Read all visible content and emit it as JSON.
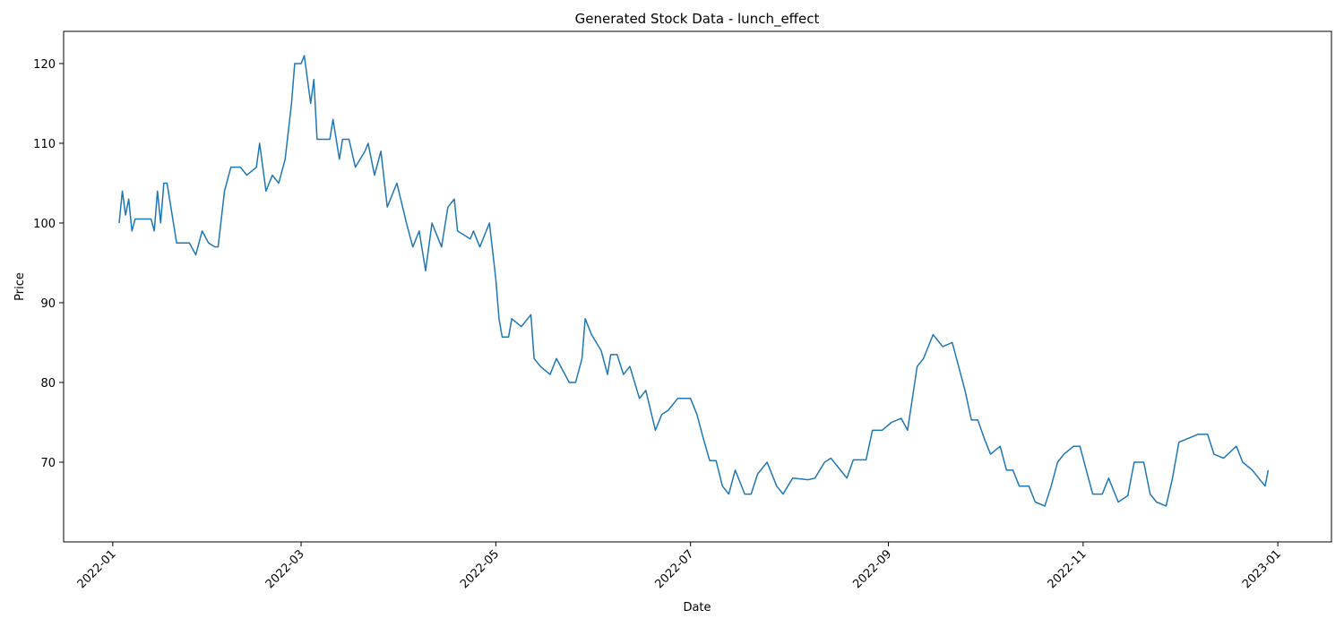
{
  "chart_data": {
    "type": "line",
    "title": "Generated Stock Data - lunch_effect",
    "x_label": "Date",
    "y_label": "Price",
    "x": [
      2,
      3,
      4,
      5,
      6,
      7,
      9,
      12,
      13,
      14,
      15,
      16,
      17,
      20,
      22,
      24,
      26,
      28,
      30,
      32,
      33,
      35,
      37,
      40,
      42,
      45,
      46,
      48,
      50,
      52,
      54,
      56,
      57,
      59,
      60,
      62,
      63,
      64,
      68,
      69,
      71,
      72,
      74,
      76,
      79,
      80,
      82,
      84,
      86,
      88,
      89,
      92,
      94,
      96,
      98,
      100,
      103,
      105,
      107,
      108,
      112,
      113,
      115,
      117,
      118,
      120,
      121,
      122,
      124,
      125,
      128,
      131,
      132,
      134,
      137,
      139,
      143,
      145,
      147,
      148,
      150,
      153,
      155,
      156,
      158,
      160,
      162,
      165,
      167,
      170,
      172,
      174,
      177,
      181,
      183,
      185,
      187,
      189,
      191,
      193,
      195,
      198,
      200,
      202,
      205,
      208,
      210,
      213,
      218,
      220,
      223,
      225,
      228,
      230,
      232,
      236,
      238,
      241,
      244,
      247,
      249,
      252,
      254,
      257,
      260,
      263,
      265,
      267,
      269,
      271,
      273,
      275,
      278,
      280,
      282,
      284,
      287,
      289,
      292,
      294,
      296,
      298,
      301,
      303,
      305,
      307,
      310,
      312,
      315,
      318,
      320,
      323,
      325,
      327,
      330,
      332,
      334,
      337,
      340,
      343,
      345,
      348,
      352,
      354,
      357,
      359,
      361,
      362
    ],
    "series": [
      {
        "name": "Price",
        "color": "#1f77b4",
        "values": [
          100,
          104,
          101,
          103,
          99,
          100.5,
          100.5,
          100.5,
          99,
          104,
          100,
          105,
          105,
          97.5,
          97.5,
          97.5,
          96,
          99,
          97.5,
          97,
          97,
          104,
          107,
          107,
          106,
          107,
          110,
          104,
          106,
          105,
          108,
          115,
          120,
          120,
          121,
          115,
          118,
          110.5,
          110.5,
          113,
          108,
          110.5,
          110.5,
          107,
          109,
          110,
          106,
          109,
          102,
          104,
          105,
          100,
          97,
          99,
          94,
          100,
          97,
          102,
          103,
          99,
          98,
          99,
          97,
          99,
          100,
          93,
          88,
          85.7,
          85.7,
          88,
          87,
          88.5,
          83,
          82,
          81,
          83,
          80,
          80,
          83,
          88,
          86,
          84,
          81,
          83.5,
          83.5,
          81,
          82,
          78,
          79,
          74,
          76,
          76.5,
          78,
          78,
          76,
          73,
          70.2,
          70.2,
          67,
          66,
          69,
          66,
          66,
          68.5,
          70,
          67,
          66,
          68,
          67.8,
          68,
          70,
          70.5,
          69,
          68,
          70.3,
          70.3,
          74,
          74,
          75,
          75.5,
          74,
          82,
          83,
          86,
          84.5,
          85,
          82,
          79,
          75.3,
          75.3,
          73,
          71,
          72,
          69,
          69,
          67,
          67,
          65,
          64.5,
          67,
          70,
          71,
          72,
          72,
          69,
          66,
          66,
          68,
          65,
          65.8,
          70,
          70,
          66,
          65,
          64.5,
          68,
          72.5,
          73,
          73.5,
          73.5,
          71,
          70.5,
          72,
          70,
          69,
          68,
          67,
          69
        ]
      }
    ],
    "xlim": [
      -15.4,
      381.8
    ],
    "xticks": [
      {
        "value": 0,
        "label": "2022-01"
      },
      {
        "value": 59,
        "label": "2022-03"
      },
      {
        "value": 120,
        "label": "2022-05"
      },
      {
        "value": 181,
        "label": "2022-07"
      },
      {
        "value": 243,
        "label": "2022-09"
      },
      {
        "value": 304,
        "label": "2022-11"
      },
      {
        "value": 365,
        "label": "2023-01"
      }
    ],
    "ylim": [
      60,
      124.04
    ],
    "yticks": [
      70,
      80,
      90,
      100,
      110,
      120
    ]
  }
}
